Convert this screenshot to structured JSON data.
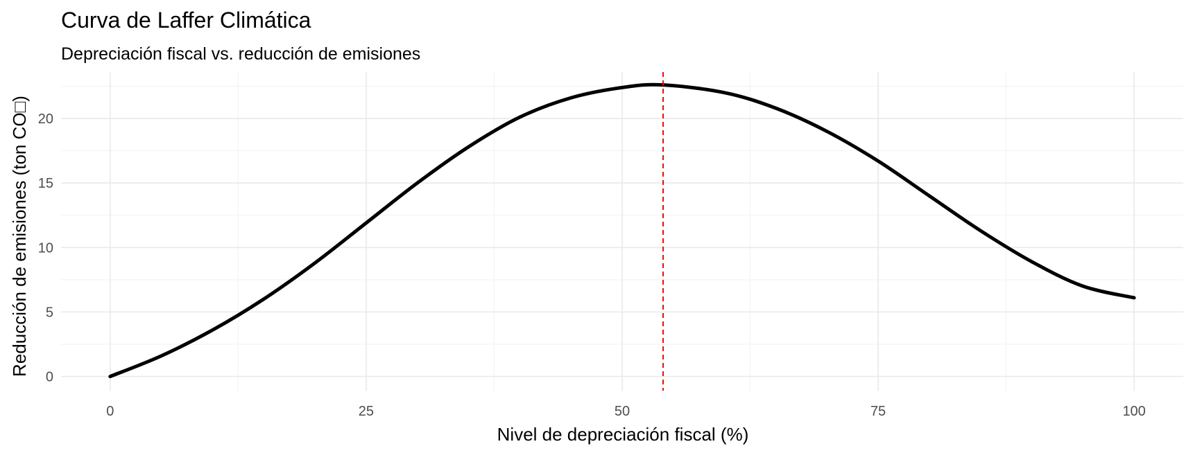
{
  "chart_data": {
    "type": "line",
    "title": "Curva de Laffer Climática",
    "subtitle": "Depreciación fiscal vs. reducción de emisiones",
    "xlabel": "Nivel de depreciación fiscal (%)",
    "ylabel": "Reducción de emisiones (ton CO□)",
    "xlim": [
      -4.8,
      104.8
    ],
    "ylim": [
      -1.1,
      23.6
    ],
    "x_ticks": [
      0,
      25,
      50,
      75,
      100
    ],
    "y_ticks": [
      0,
      5,
      10,
      15,
      20
    ],
    "grid": true,
    "legend": "none",
    "series": [
      {
        "color": "#000000",
        "x": [
          0,
          5,
          10,
          15,
          20,
          25,
          30,
          35,
          40,
          45,
          50,
          54,
          60,
          65,
          70,
          75,
          80,
          85,
          90,
          95,
          100
        ],
        "y": [
          0,
          1.6,
          3.6,
          6.0,
          8.8,
          11.9,
          15.0,
          17.8,
          20.1,
          21.6,
          22.4,
          22.6,
          22.0,
          20.8,
          19.0,
          16.7,
          14.0,
          11.3,
          8.9,
          7.0,
          6.1
        ]
      }
    ],
    "annotations": [
      {
        "type": "vline",
        "x": 54,
        "color": "#ff0000",
        "style": "dashed"
      }
    ]
  }
}
